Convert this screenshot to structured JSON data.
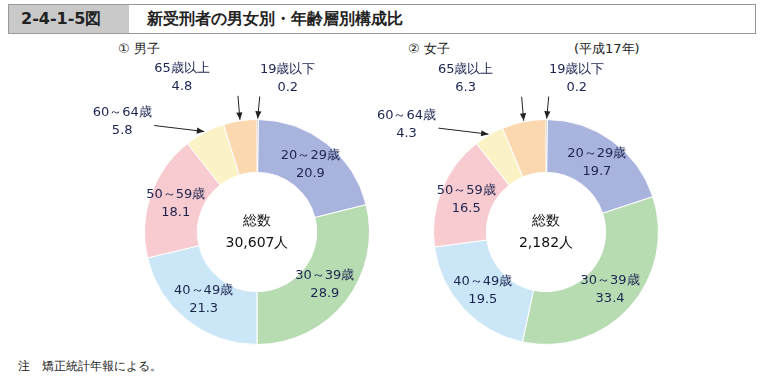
{
  "figure_number": "2-4-1-5図",
  "title": "新受刑者の男女別・年齢層別構成比",
  "period": "(平成17年)",
  "note": "注　矯正統計年報による。",
  "chart_data": [
    {
      "type": "doughnut",
      "title": "① 男子",
      "center_label": "総数",
      "total": {
        "value": 30607,
        "label": "30,607人"
      },
      "categories": [
        "19歳以下",
        "20～29歳",
        "30～39歳",
        "40～49歳",
        "50～59歳",
        "60～64歳",
        "65歳以上"
      ],
      "values": [
        0.2,
        20.9,
        28.9,
        21.3,
        18.1,
        5.8,
        4.8
      ],
      "colors": [
        "#2e3a6b",
        "#a9b4de",
        "#b7dcb2",
        "#cbe7f7",
        "#f7cbcf",
        "#fbf3c6",
        "#fbd8b0"
      ],
      "data_labels": true
    },
    {
      "type": "doughnut",
      "title": "② 女子",
      "center_label": "総数",
      "total": {
        "value": 2182,
        "label": "2,182人"
      },
      "categories": [
        "19歳以下",
        "20～29歳",
        "30～39歳",
        "40～49歳",
        "50～59歳",
        "60～64歳",
        "65歳以上"
      ],
      "values": [
        0.2,
        19.7,
        33.4,
        19.5,
        16.5,
        4.3,
        6.3
      ],
      "colors": [
        "#2e3a6b",
        "#a9b4de",
        "#b7dcb2",
        "#cbe7f7",
        "#f7cbcf",
        "#fbf3c6",
        "#fbd8b0"
      ],
      "data_labels": true
    }
  ]
}
